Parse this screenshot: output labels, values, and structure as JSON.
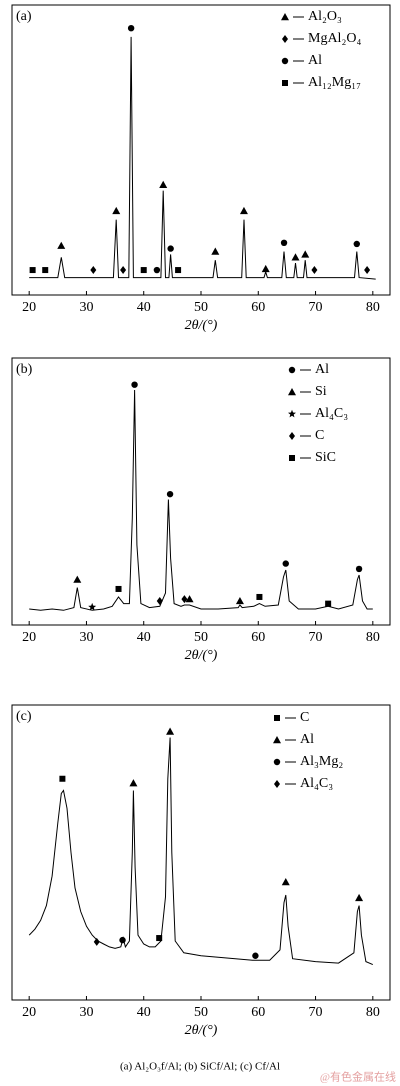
{
  "chart_data": [
    {
      "type": "line",
      "label": "(a)",
      "xlabel": "2θ/(°)",
      "xlim": [
        17,
        83
      ],
      "ylim": [
        0,
        100
      ],
      "xticks": [
        20,
        30,
        40,
        50,
        60,
        70,
        80
      ],
      "color": "#000000",
      "x": [
        20,
        25.0,
        25.6,
        26.2,
        34.7,
        35.2,
        35.6,
        37.4,
        37.8,
        38.2,
        43.0,
        43.4,
        43.8,
        44.4,
        44.7,
        45.0,
        52.1,
        52.5,
        52.9,
        57.1,
        57.5,
        57.9,
        61.0,
        61.3,
        61.6,
        64.1,
        64.5,
        64.9,
        66.2,
        66.5,
        66.8,
        67.9,
        68.2,
        68.5,
        76.8,
        77.2,
        77.6,
        80.5
      ],
      "values": [
        6,
        6,
        13,
        6,
        6,
        26,
        6,
        6,
        89,
        6,
        6,
        36,
        6,
        6,
        14,
        6,
        6,
        12,
        6,
        6,
        26,
        6,
        6,
        8,
        6,
        6,
        15,
        6,
        6,
        11,
        6,
        6,
        12,
        6,
        6,
        15,
        6,
        5.5
      ],
      "phases": [
        {
          "name": "Al₂O₃",
          "marker": "triangle"
        },
        {
          "name": "MgAl₂O₄",
          "marker": "diamond"
        },
        {
          "name": "Al",
          "marker": "circle"
        },
        {
          "name": "Al₁₂Mg₁₇",
          "marker": "square"
        }
      ],
      "markers": [
        {
          "phase": 0,
          "x": 25.6,
          "y": 17
        },
        {
          "phase": 0,
          "x": 35.2,
          "y": 29
        },
        {
          "phase": 2,
          "x": 37.8,
          "y": 92
        },
        {
          "phase": 0,
          "x": 43.4,
          "y": 38
        },
        {
          "phase": 2,
          "x": 44.7,
          "y": 16
        },
        {
          "phase": 0,
          "x": 52.5,
          "y": 15
        },
        {
          "phase": 0,
          "x": 57.5,
          "y": 29
        },
        {
          "phase": 0,
          "x": 61.3,
          "y": 9
        },
        {
          "phase": 2,
          "x": 64.5,
          "y": 18
        },
        {
          "phase": 0,
          "x": 66.5,
          "y": 13
        },
        {
          "phase": 0,
          "x": 68.2,
          "y": 14
        },
        {
          "phase": 2,
          "x": 77.2,
          "y": 17.6
        },
        {
          "phase": 3,
          "x": 20.6,
          "y": 8.6
        },
        {
          "phase": 3,
          "x": 22.8,
          "y": 8.6
        },
        {
          "phase": 3,
          "x": 40.0,
          "y": 8.6
        },
        {
          "phase": 3,
          "x": 46.0,
          "y": 8.6
        },
        {
          "phase": 2,
          "x": 42.3,
          "y": 8.6
        },
        {
          "phase": 1,
          "x": 31.2,
          "y": 8.6
        },
        {
          "phase": 1,
          "x": 36.4,
          "y": 8.6
        },
        {
          "phase": 1,
          "x": 69.8,
          "y": 8.6
        },
        {
          "phase": 1,
          "x": 79.0,
          "y": 8.6
        }
      ]
    },
    {
      "type": "line",
      "label": "(b)",
      "xlabel": "2θ/(°)",
      "xlim": [
        17,
        83
      ],
      "ylim": [
        0,
        100
      ],
      "xticks": [
        20,
        30,
        40,
        50,
        60,
        70,
        80
      ],
      "color": "#000000",
      "x": [
        20,
        22,
        24,
        26,
        27.8,
        28.4,
        29,
        31,
        33,
        34.5,
        35.6,
        36.5,
        37.5,
        38.0,
        38.4,
        38.8,
        39.5,
        41,
        42.8,
        43.8,
        44.3,
        44.7,
        45.3,
        46.5,
        47.1,
        48,
        50,
        53,
        56.5,
        56.8,
        57.2,
        59.2,
        60.2,
        61.2,
        63.5,
        64.4,
        64.8,
        65.4,
        67,
        70,
        72.2,
        74,
        76.5,
        77.3,
        77.6,
        78.2,
        79,
        80
      ],
      "values": [
        6,
        5.5,
        6,
        5.5,
        6.5,
        14,
        6.5,
        5.5,
        6,
        7,
        10.5,
        8,
        8,
        40,
        88,
        30,
        8,
        6.5,
        7,
        12,
        47,
        25,
        8,
        7,
        7.5,
        7.5,
        6,
        6,
        6.5,
        7.5,
        6.5,
        7,
        8,
        7,
        7.5,
        18,
        20.6,
        9,
        6,
        6,
        7,
        6,
        7.5,
        17,
        18.7,
        9,
        6,
        6
      ],
      "phases": [
        {
          "name": "Al",
          "marker": "circle"
        },
        {
          "name": "Si",
          "marker": "triangle"
        },
        {
          "name": "Al₄C₃",
          "marker": "star"
        },
        {
          "name": "C",
          "marker": "diamond"
        },
        {
          "name": "SiC",
          "marker": "square"
        }
      ],
      "markers": [
        {
          "phase": 1,
          "x": 28.4,
          "y": 17
        },
        {
          "phase": 4,
          "x": 35.6,
          "y": 13.5
        },
        {
          "phase": 0,
          "x": 38.4,
          "y": 90
        },
        {
          "phase": 0,
          "x": 44.6,
          "y": 49
        },
        {
          "phase": 1,
          "x": 56.8,
          "y": 9
        },
        {
          "phase": 4,
          "x": 60.2,
          "y": 10.5
        },
        {
          "phase": 0,
          "x": 64.8,
          "y": 23
        },
        {
          "phase": 4,
          "x": 72.2,
          "y": 8
        },
        {
          "phase": 0,
          "x": 77.6,
          "y": 21
        },
        {
          "phase": 2,
          "x": 31,
          "y": 6.7
        },
        {
          "phase": 3,
          "x": 42.8,
          "y": 9
        },
        {
          "phase": 3,
          "x": 47.1,
          "y": 9.7
        },
        {
          "phase": 1,
          "x": 48.0,
          "y": 9.7
        }
      ]
    },
    {
      "type": "line",
      "label": "(c)",
      "xlabel": "2θ/(°)",
      "xlim": [
        17,
        83
      ],
      "ylim": [
        0,
        100
      ],
      "xticks": [
        20,
        30,
        40,
        50,
        60,
        70,
        80
      ],
      "color": "#000000",
      "x": [
        20,
        21,
        22,
        23,
        24,
        25,
        25.6,
        26,
        26.6,
        27.3,
        28,
        29,
        30,
        31,
        32,
        33,
        34,
        35,
        36,
        36.4,
        36.8,
        37.5,
        38.0,
        38.2,
        38.5,
        39,
        40,
        41,
        42,
        43,
        43.8,
        44.2,
        44.6,
        44.9,
        45.5,
        47,
        50,
        53,
        56,
        59,
        62,
        63.8,
        64.5,
        64.8,
        65.2,
        66,
        70,
        74,
        76.7,
        77.3,
        77.6,
        78,
        78.8,
        80
      ],
      "values": [
        22,
        24,
        27,
        32,
        42,
        60,
        70,
        71,
        65,
        50,
        38,
        30,
        25,
        22,
        20,
        19,
        18,
        17.5,
        18,
        21,
        18,
        20,
        50,
        71,
        45,
        22,
        19,
        18,
        18,
        20,
        35,
        75,
        89,
        50,
        20,
        16,
        15,
        14.5,
        14,
        13.5,
        13.5,
        17,
        33,
        35.6,
        25,
        14,
        13,
        12.5,
        16,
        30,
        32,
        22,
        13,
        12
      ],
      "phases": [
        {
          "name": "C",
          "marker": "square"
        },
        {
          "name": "Al",
          "marker": "triangle"
        },
        {
          "name": "Al₃Mg₂",
          "marker": "circle"
        },
        {
          "name": "Al₄C₃",
          "marker": "diamond"
        }
      ],
      "markers": [
        {
          "phase": 0,
          "x": 25.8,
          "y": 75
        },
        {
          "phase": 1,
          "x": 38.2,
          "y": 73.5
        },
        {
          "phase": 1,
          "x": 44.6,
          "y": 91
        },
        {
          "phase": 1,
          "x": 64.8,
          "y": 40
        },
        {
          "phase": 1,
          "x": 77.6,
          "y": 34.6
        },
        {
          "phase": 3,
          "x": 31.8,
          "y": 19.7
        },
        {
          "phase": 2,
          "x": 36.3,
          "y": 20.3
        },
        {
          "phase": 0,
          "x": 42.7,
          "y": 21
        },
        {
          "phase": 2,
          "x": 59.5,
          "y": 15
        }
      ]
    }
  ],
  "caption": "(a) Al₂O₃f/Al; (b) SiCf/Al; (c) Cf/Al",
  "watermark": "@有色金属在线"
}
